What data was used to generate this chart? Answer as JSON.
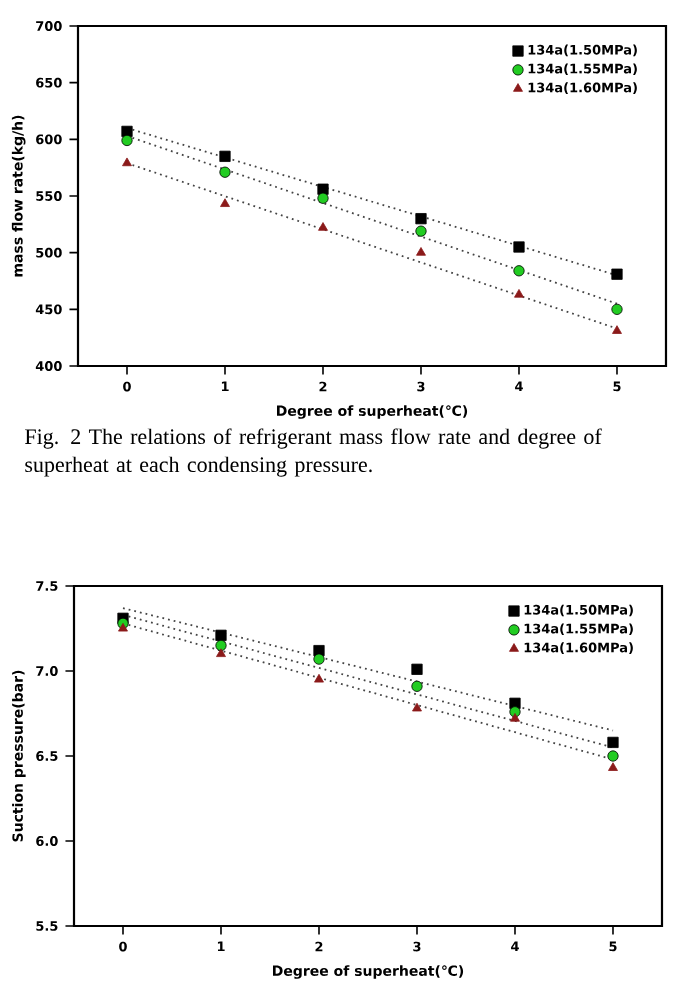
{
  "chart_data": [
    {
      "type": "scatter",
      "xlabel": "Degree of superheat(℃)",
      "ylabel": "mass flow rate(kg/h)",
      "xlim": [
        -0.5,
        5.5
      ],
      "ylim": [
        400,
        700
      ],
      "xticks": [
        0,
        1,
        2,
        3,
        4,
        5
      ],
      "yticks": [
        400,
        450,
        500,
        550,
        600,
        650,
        700
      ],
      "legend": "top right",
      "annotations": [
        "Fig. 2 The relations of refrigerant mass flow rate and degree of superheat at each condensing pressure."
      ],
      "series": [
        {
          "name": "134a(1.50MPa)",
          "color": "#000000",
          "marker": "square",
          "x": [
            0,
            1,
            2,
            3,
            4,
            5
          ],
          "values": [
            607,
            585,
            556,
            530,
            505,
            481
          ]
        },
        {
          "name": "134a(1.55MPa)",
          "color": "#22cc22",
          "marker": "circle",
          "x": [
            0,
            1,
            2,
            3,
            4,
            5
          ],
          "values": [
            599,
            571,
            548,
            519,
            484,
            450
          ]
        },
        {
          "name": "134a(1.60MPa)",
          "color": "#8b1a1a",
          "marker": "triangle",
          "x": [
            0,
            1,
            2,
            3,
            4,
            5
          ],
          "values": [
            579,
            543,
            522,
            500,
            463,
            431
          ]
        },
        {
          "type": "line",
          "color": "#444444",
          "line_style": "dotted",
          "marker": "none",
          "x": [
            0,
            5
          ],
          "values": [
            610,
            480
          ]
        },
        {
          "type": "line",
          "color": "#444444",
          "line_style": "dotted",
          "marker": "none",
          "x": [
            0,
            5
          ],
          "values": [
            603,
            455
          ]
        },
        {
          "type": "line",
          "color": "#444444",
          "line_style": "dotted",
          "marker": "none",
          "x": [
            0,
            5
          ],
          "values": [
            579,
            433
          ]
        }
      ]
    },
    {
      "type": "scatter",
      "xlabel": "Degree of superheat(℃)",
      "ylabel": "Suction pressure(bar)",
      "xlim": [
        -0.5,
        5.5
      ],
      "ylim": [
        5.5,
        7.5
      ],
      "xticks": [
        0,
        1,
        2,
        3,
        4,
        5
      ],
      "yticks": [
        5.5,
        {
          "value": 6.0,
          "label": "6.0"
        },
        6.5,
        {
          "value": 7.0,
          "label": "7.0"
        },
        7.5
      ],
      "legend": "top right",
      "series": [
        {
          "name": "134a(1.50MPa)",
          "color": "#000000",
          "marker": "square",
          "x": [
            0,
            1,
            2,
            3,
            4,
            5
          ],
          "values": [
            7.31,
            7.21,
            7.12,
            7.01,
            6.81,
            6.58
          ]
        },
        {
          "name": "134a(1.55MPa)",
          "color": "#22cc22",
          "marker": "circle",
          "x": [
            0,
            1,
            2,
            3,
            4,
            5
          ],
          "values": [
            7.28,
            7.15,
            7.07,
            6.91,
            6.76,
            6.5
          ]
        },
        {
          "name": "134a(1.60MPa)",
          "color": "#8b1a1a",
          "marker": "triangle",
          "x": [
            0,
            1,
            2,
            3,
            4,
            5
          ],
          "values": [
            7.25,
            7.1,
            6.95,
            6.78,
            6.72,
            6.43
          ]
        },
        {
          "type": "line",
          "color": "#444444",
          "line_style": "dotted",
          "marker": "none",
          "x": [
            0,
            5
          ],
          "values": [
            7.37,
            6.65
          ]
        },
        {
          "type": "line",
          "color": "#444444",
          "line_style": "dotted",
          "marker": "none",
          "x": [
            0,
            5
          ],
          "values": [
            7.33,
            6.55
          ]
        },
        {
          "type": "line",
          "color": "#444444",
          "line_style": "dotted",
          "marker": "none",
          "x": [
            0,
            5
          ],
          "values": [
            7.28,
            6.48
          ]
        }
      ]
    }
  ]
}
